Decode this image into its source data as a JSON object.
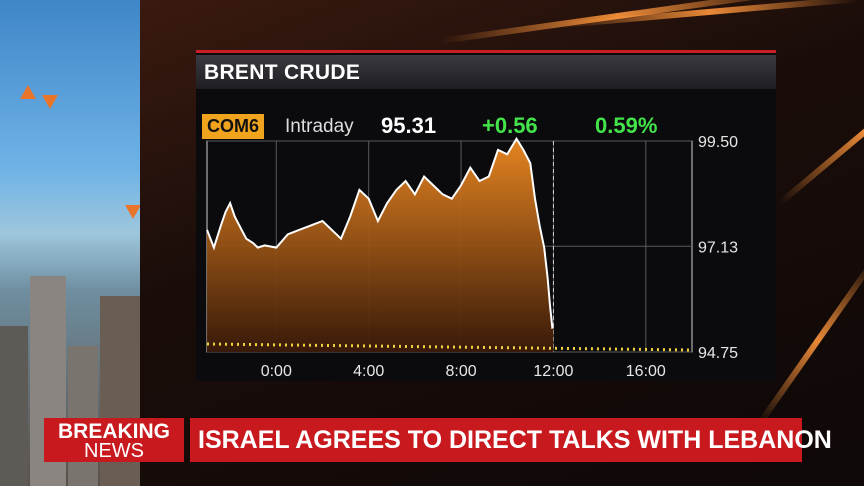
{
  "chart_title": "BRENT CRUDE",
  "quote": {
    "ticker": "COM6",
    "period": "Intraday",
    "price": "95.31",
    "change": "+0.56",
    "change_pct": "0.59%"
  },
  "banner": {
    "label_top": "BREAKING",
    "label_bottom": "NEWS",
    "headline": "ISRAEL AGREES TO DIRECT TALKS WITH LEBANON"
  },
  "colors": {
    "accent_red": "#c81a1e",
    "ticker_bg": "#f0a41e",
    "positive": "#43e44a",
    "area_fill": "#e07a1e"
  },
  "chart_data": {
    "type": "area",
    "title": "BRENT CRUDE",
    "x_ticks": [
      "0:00",
      "4:00",
      "8:00",
      "12:00",
      "16:00"
    ],
    "y_ticks": [
      99.5,
      97.13,
      94.75
    ],
    "ylim": [
      94.75,
      99.5
    ],
    "xlim": [
      -3,
      18
    ],
    "reference_line": 94.75,
    "grid": true,
    "series": [
      {
        "x": [
          -3,
          -2.7,
          -2.4,
          -2.2,
          -2,
          -1.8,
          -1.5,
          -1.3,
          -1,
          -0.8,
          -0.5,
          0,
          0.5,
          1,
          1.5,
          2,
          2.4,
          2.8,
          3.2,
          3.6,
          4,
          4.4,
          4.8,
          5.2,
          5.6,
          6,
          6.4,
          6.8,
          7.2,
          7.6,
          8,
          8.4,
          8.8,
          9.2,
          9.6,
          10,
          10.4,
          10.7,
          11,
          11.2,
          11.4,
          11.6,
          11.75,
          11.85,
          11.95,
          12
        ],
        "y": [
          97.5,
          97.1,
          97.6,
          97.9,
          98.1,
          97.8,
          97.5,
          97.3,
          97.2,
          97.1,
          97.15,
          97.1,
          97.4,
          97.5,
          97.6,
          97.7,
          97.5,
          97.3,
          97.8,
          98.4,
          98.2,
          97.7,
          98.1,
          98.4,
          98.6,
          98.3,
          98.7,
          98.5,
          98.3,
          98.2,
          98.5,
          98.9,
          98.6,
          98.7,
          99.3,
          99.2,
          99.55,
          99.3,
          99.0,
          98.2,
          97.6,
          97.1,
          96.4,
          95.8,
          95.3,
          95.31
        ]
      }
    ]
  }
}
